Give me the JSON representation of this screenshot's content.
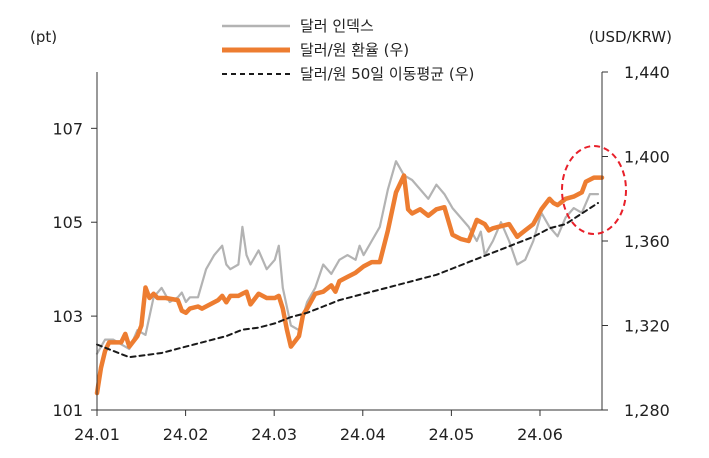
{
  "chart_data": {
    "type": "line",
    "left_axis": {
      "unit_label": "(pt)",
      "ylim": [
        101,
        108.2
      ],
      "ticks": [
        101,
        103,
        105,
        107
      ],
      "tick_labels": [
        "101",
        "103",
        "105",
        "107"
      ]
    },
    "right_axis": {
      "unit_label": "(USD/KRW)",
      "ylim": [
        1280,
        1440
      ],
      "ticks": [
        1280,
        1320,
        1360,
        1400,
        1440
      ],
      "tick_labels": [
        "1,280",
        "1,320",
        "1,360",
        "1,400",
        "1,440"
      ]
    },
    "x_axis": {
      "ticks": [
        "24.01",
        "24.02",
        "24.03",
        "24.04",
        "24.05",
        "24.06"
      ],
      "xlim": [
        0,
        125
      ]
    },
    "legend": {
      "placement": "top-center",
      "entries": [
        "달러 인덱스",
        "달러/원 환율 (우)",
        "달러/원 50일 이동평균 (우)"
      ]
    },
    "series": [
      {
        "name": "달러 인덱스",
        "axis": "left",
        "color": "#b3b3b3",
        "style": "solid",
        "x": [
          0,
          2,
          4,
          6,
          8,
          10,
          12,
          14,
          16,
          18,
          20,
          21,
          22,
          23,
          25,
          27,
          29,
          31,
          32,
          33,
          35,
          36,
          37,
          38,
          40,
          42,
          44,
          45,
          46,
          48,
          50,
          52,
          54,
          56,
          58,
          60,
          62,
          64,
          65,
          66,
          68,
          70,
          72,
          74,
          76,
          78,
          80,
          82,
          84,
          86,
          88,
          90,
          92,
          94,
          95,
          96,
          98,
          100,
          102,
          104,
          106,
          108,
          110,
          112,
          114,
          116,
          118,
          120,
          122,
          124
        ],
        "y": [
          102.2,
          102.5,
          102.5,
          102.4,
          102.3,
          102.7,
          102.6,
          103.4,
          103.6,
          103.3,
          103.4,
          103.5,
          103.3,
          103.4,
          103.4,
          104.0,
          104.3,
          104.5,
          104.1,
          104.0,
          104.1,
          104.9,
          104.3,
          104.1,
          104.4,
          104.0,
          104.2,
          104.5,
          103.6,
          102.8,
          102.7,
          103.3,
          103.6,
          104.1,
          103.9,
          104.2,
          104.3,
          104.2,
          104.5,
          104.3,
          104.6,
          104.9,
          105.7,
          106.3,
          106.0,
          105.9,
          105.7,
          105.5,
          105.8,
          105.6,
          105.3,
          105.1,
          104.9,
          104.6,
          104.8,
          104.3,
          104.6,
          105.0,
          104.6,
          104.1,
          104.2,
          104.6,
          105.2,
          104.9,
          104.7,
          105.1,
          105.3,
          105.2,
          105.6,
          105.6
        ]
      },
      {
        "name": "달러/원 환율 (우)",
        "axis": "right",
        "color": "#ed7d31",
        "style": "solid",
        "x": [
          0,
          1,
          2,
          3,
          5,
          6,
          7,
          8,
          10,
          11,
          12,
          13,
          14,
          15,
          17,
          20,
          21,
          22,
          23,
          25,
          26,
          30,
          31,
          32,
          33,
          35,
          36,
          37,
          38,
          40,
          42,
          44,
          45,
          46,
          47,
          48,
          50,
          51,
          52,
          54,
          56,
          58,
          59,
          60,
          62,
          64,
          66,
          68,
          70,
          72,
          74,
          76,
          77,
          78,
          80,
          82,
          84,
          86,
          88,
          90,
          92,
          94,
          96,
          97,
          98,
          100,
          102,
          104,
          106,
          108,
          110,
          112,
          113,
          114,
          116,
          118,
          120,
          121,
          123,
          125
        ],
        "y": [
          1288,
          1300,
          1308,
          1312,
          1312,
          1312,
          1316,
          1310,
          1315,
          1320,
          1338,
          1333,
          1335,
          1333,
          1333,
          1332,
          1327,
          1326,
          1328,
          1329,
          1328,
          1332,
          1334,
          1331,
          1334,
          1334,
          1335,
          1336,
          1330,
          1335,
          1333,
          1333,
          1334,
          1328,
          1318,
          1310,
          1315,
          1325,
          1328,
          1335,
          1336,
          1339,
          1336,
          1341,
          1343,
          1345,
          1348,
          1350,
          1350,
          1365,
          1383,
          1391,
          1375,
          1373,
          1375,
          1372,
          1375,
          1376,
          1363,
          1361,
          1360,
          1370,
          1368,
          1365,
          1366,
          1367,
          1368,
          1362,
          1365,
          1368,
          1375,
          1380,
          1378,
          1377,
          1380,
          1381,
          1383,
          1388,
          1390,
          1390
        ]
      },
      {
        "name": "달러/원 50일 이동평균 (우)",
        "axis": "right",
        "color": "#1a1a1a",
        "style": "dashed",
        "x": [
          0,
          4,
          8,
          12,
          16,
          20,
          24,
          28,
          32,
          36,
          40,
          44,
          48,
          52,
          56,
          60,
          64,
          68,
          72,
          76,
          80,
          84,
          88,
          92,
          96,
          100,
          104,
          108,
          112,
          116,
          120,
          124
        ],
        "y": [
          1311,
          1308,
          1305,
          1306,
          1307,
          1309,
          1311,
          1313,
          1315,
          1318,
          1319,
          1321,
          1324,
          1326,
          1329,
          1332,
          1334,
          1336,
          1338,
          1340,
          1342,
          1344,
          1347,
          1350,
          1353,
          1356,
          1359,
          1362,
          1366,
          1368,
          1373,
          1378
        ]
      }
    ],
    "annotation": {
      "type": "dashed-ellipse",
      "color": "#e8202a"
    }
  }
}
